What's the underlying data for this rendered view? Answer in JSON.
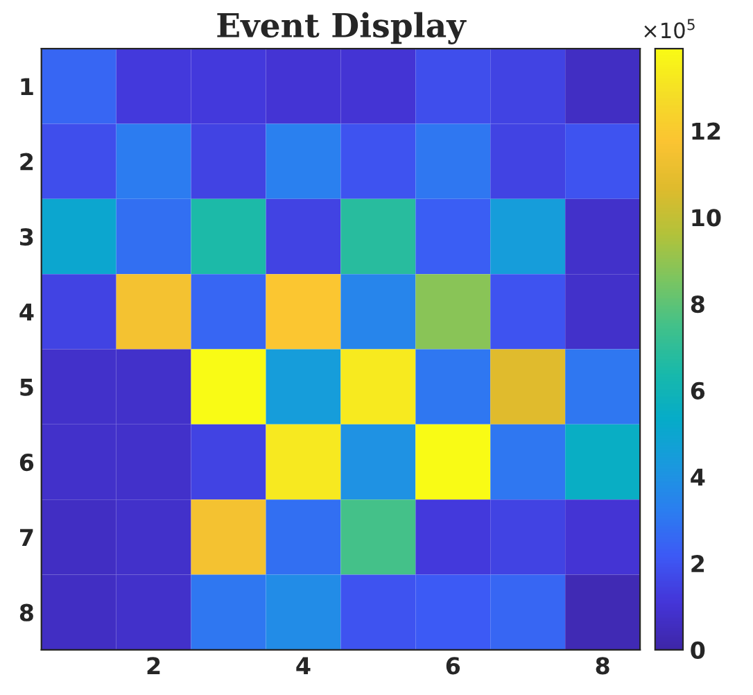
{
  "chart_data": {
    "type": "heatmap",
    "title": "Event Display",
    "clabel": "×10$^{5}$",
    "categories": [
      null,
      "2",
      null,
      "4",
      null,
      "6",
      null,
      "8"
    ],
    "y_categories": [
      "1",
      "2",
      "3",
      "4",
      "5",
      "6",
      "7",
      "8"
    ],
    "cells": [
      [
        2.5,
        1.2,
        1.2,
        1.0,
        1.0,
        1.8,
        1.5,
        0.6
      ],
      [
        1.8,
        3.2,
        1.5,
        3.3,
        2.0,
        3.0,
        1.5,
        2.0
      ],
      [
        5.0,
        2.8,
        6.5,
        1.5,
        6.8,
        2.3,
        4.5,
        0.8
      ],
      [
        1.5,
        11.5,
        2.5,
        11.8,
        3.5,
        8.8,
        2.0,
        0.8
      ],
      [
        0.8,
        0.8,
        13.9,
        4.5,
        13.3,
        3.0,
        10.7,
        3.0
      ],
      [
        0.8,
        0.8,
        1.5,
        13.2,
        4.0,
        13.9,
        3.0,
        5.5
      ],
      [
        0.6,
        0.8,
        11.5,
        2.8,
        7.5,
        1.2,
        1.5,
        1.0
      ],
      [
        0.6,
        0.8,
        3.0,
        3.8,
        2.0,
        2.2,
        2.5,
        0.3
      ]
    ],
    "clim": [
      0,
      13.9
    ],
    "cticks": [
      0,
      2,
      4,
      6,
      8,
      10,
      12
    ]
  }
}
